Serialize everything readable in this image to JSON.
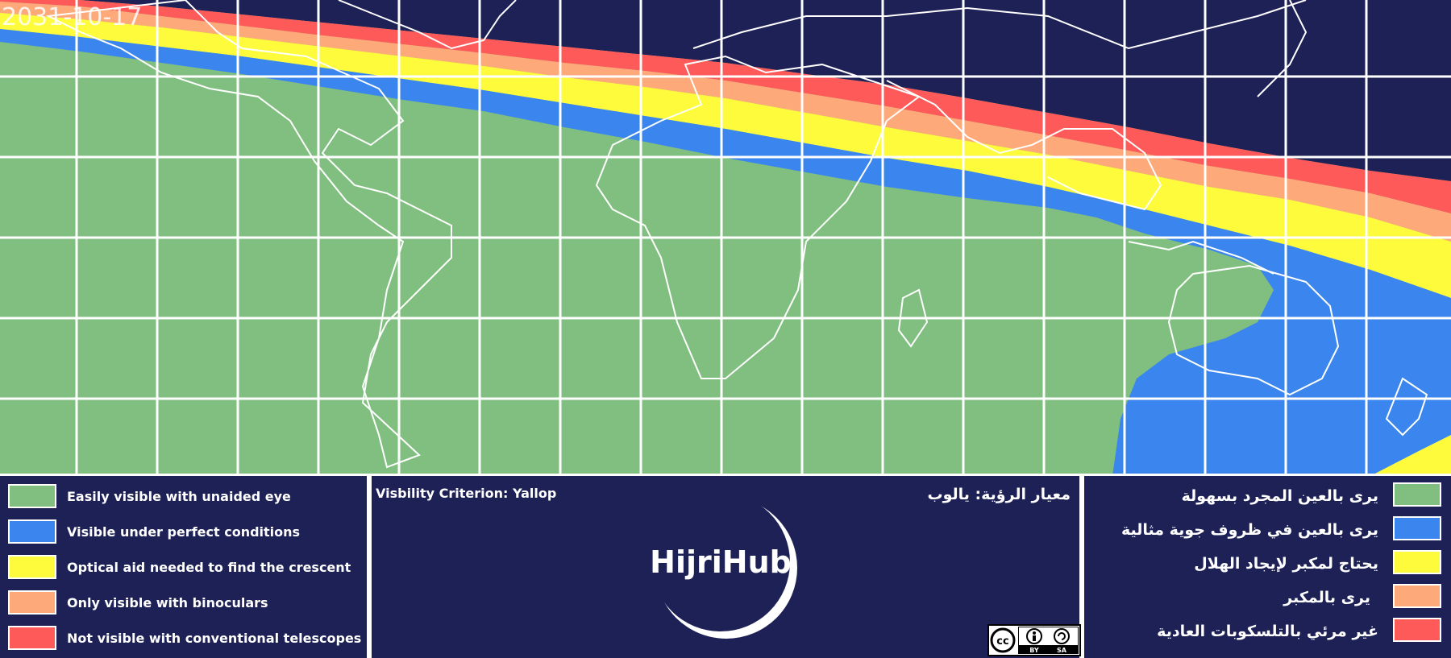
{
  "map": {
    "date": "2031-10-17",
    "zones": {
      "easily_visible": "#80bf80",
      "perfect_conditions": "#3b86ee",
      "optical_aid": "#fdfb3c",
      "binoculars": "#fea97a",
      "not_visible": "#fe5a5a",
      "night": "#1e2156"
    },
    "grid": "on",
    "coastline_color": "#ffffff"
  },
  "legend_en": [
    {
      "label": "Easily visible with unaided eye",
      "color": "#80bf80"
    },
    {
      "label": "Visible under perfect conditions",
      "color": "#3b86ee"
    },
    {
      "label": "Optical aid needed to find the crescent",
      "color": "#fdfb3c"
    },
    {
      "label": "Only visible with binoculars",
      "color": "#fea97a"
    },
    {
      "label": "Not visible with conventional telescopes",
      "color": "#fe5a5a"
    }
  ],
  "legend_ar": [
    {
      "label": "يرى بالعين المجرد بسهولة",
      "color": "#80bf80"
    },
    {
      "label": "يرى بالعين في ظروف جوية مثالية",
      "color": "#3b86ee"
    },
    {
      "label": "يحتاج لمكبر لإيجاد الهلال",
      "color": "#fdfb3c"
    },
    {
      "label": "يرى بالمكبر",
      "color": "#fea97a"
    },
    {
      "label": "غير مرئي بالتلسكوبات العادية",
      "color": "#fe5a5a"
    }
  ],
  "criterion": {
    "en": "Visbility Criterion: Yallop",
    "ar": "معيار الرؤية: يالوب"
  },
  "logo": {
    "text": "HijriHub"
  },
  "license": {
    "cc": "cc",
    "by": "BY",
    "sa": "SA"
  }
}
